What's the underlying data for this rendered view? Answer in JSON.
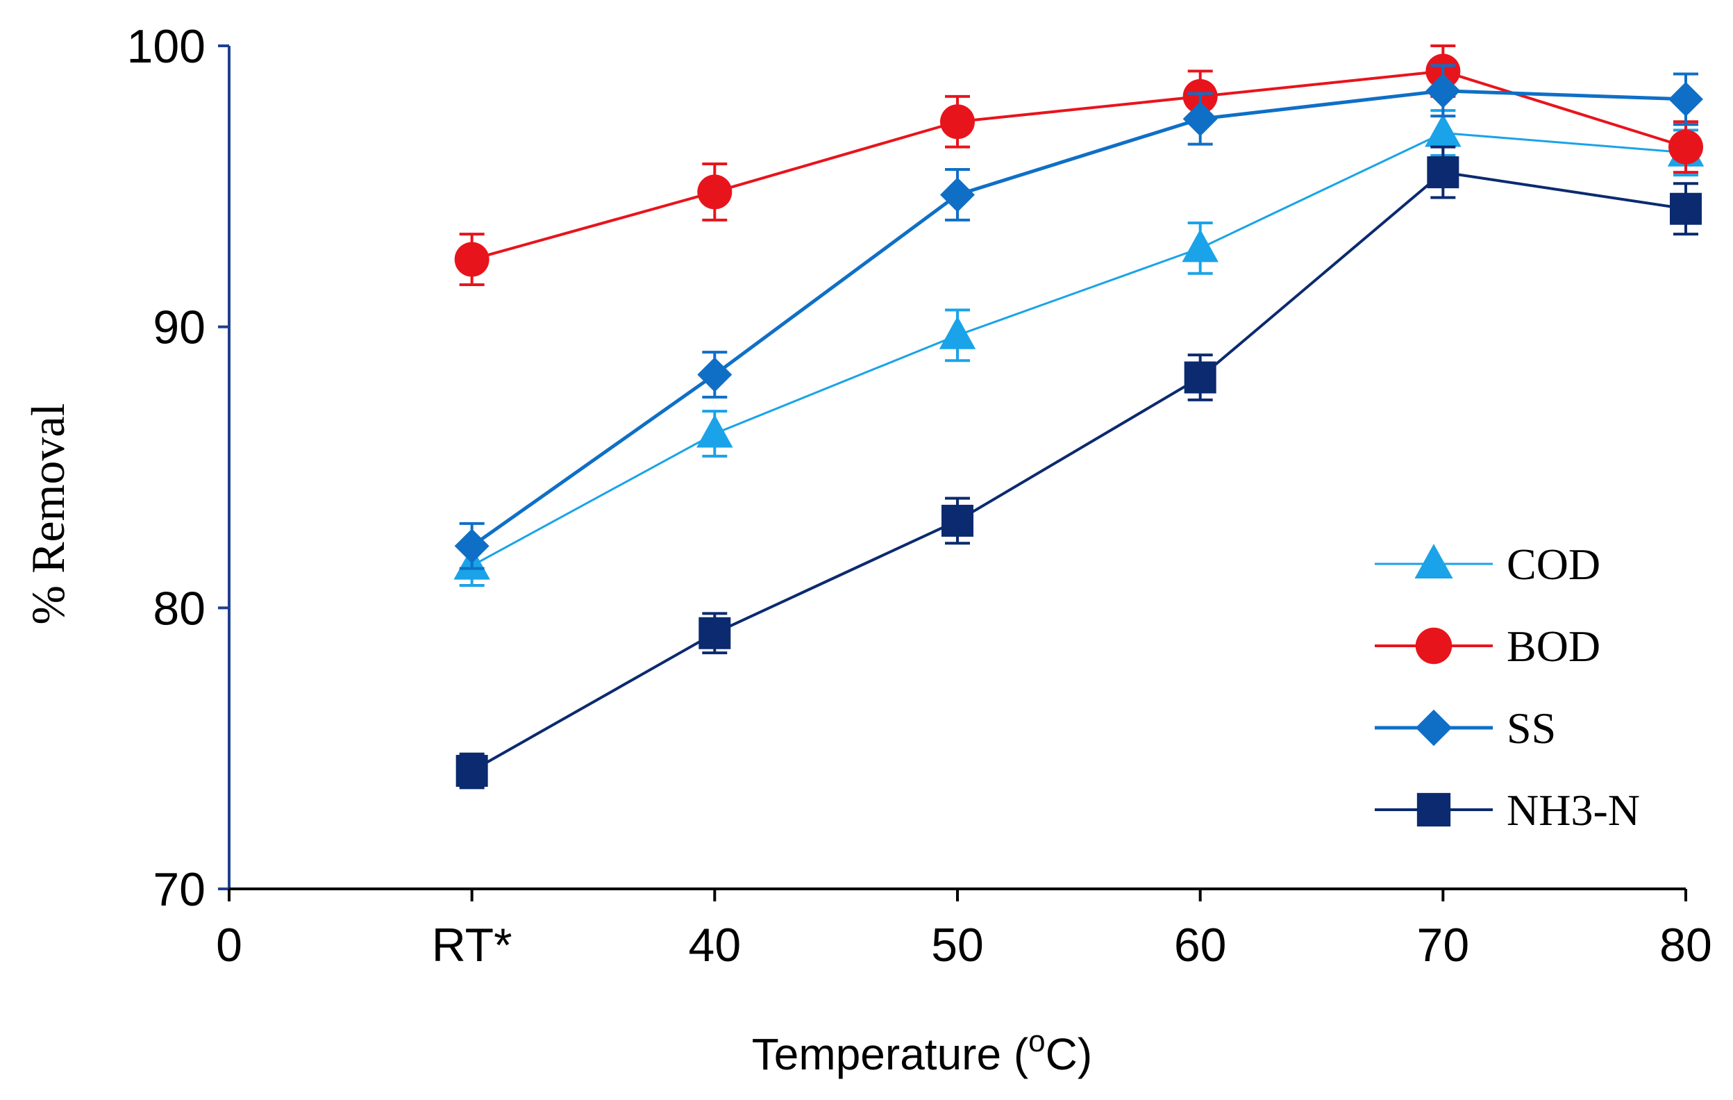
{
  "chart_data": {
    "type": "line",
    "title": "",
    "xlabel": "Temperature (",
    "xlabel_sup": "o",
    "xlabel_suffix": "C)",
    "ylabel": "% Removal",
    "ylim": [
      70,
      100
    ],
    "yticks": [
      70,
      80,
      90,
      100
    ],
    "x_tick_labels": [
      "0",
      "RT*",
      "40",
      "50",
      "60",
      "70",
      "80"
    ],
    "categories": [
      "RT*",
      "40",
      "50",
      "60",
      "70",
      "80"
    ],
    "x_positions": [
      1,
      2,
      3,
      4,
      5,
      6
    ],
    "xlim": [
      0,
      6
    ],
    "legend_position": "bottom-right",
    "series": [
      {
        "name": "COD",
        "marker": "triangle",
        "color": "#1aa3e8",
        "line_width": 3,
        "values": [
          81.5,
          86.2,
          89.7,
          92.8,
          96.9,
          96.2
        ],
        "errors": [
          0.7,
          0.8,
          0.9,
          0.9,
          0.8,
          0.8
        ]
      },
      {
        "name": "BOD",
        "marker": "circle",
        "color": "#e8141c",
        "line_width": 4,
        "values": [
          92.4,
          94.8,
          97.3,
          98.2,
          99.1,
          96.4
        ],
        "errors": [
          0.9,
          1.0,
          0.9,
          0.9,
          0.9,
          0.9
        ]
      },
      {
        "name": "SS",
        "marker": "diamond",
        "color": "#0f6fc6",
        "line_width": 5,
        "values": [
          82.2,
          88.3,
          94.7,
          97.4,
          98.4,
          98.1
        ],
        "errors": [
          0.8,
          0.8,
          0.9,
          0.9,
          0.9,
          0.9
        ]
      },
      {
        "name": "NH3-N",
        "marker": "square",
        "color": "#0b2a6f",
        "line_width": 4,
        "values": [
          74.2,
          79.1,
          83.1,
          88.2,
          95.5,
          94.2
        ],
        "errors": [
          0.6,
          0.7,
          0.8,
          0.8,
          0.9,
          0.9
        ]
      }
    ]
  }
}
